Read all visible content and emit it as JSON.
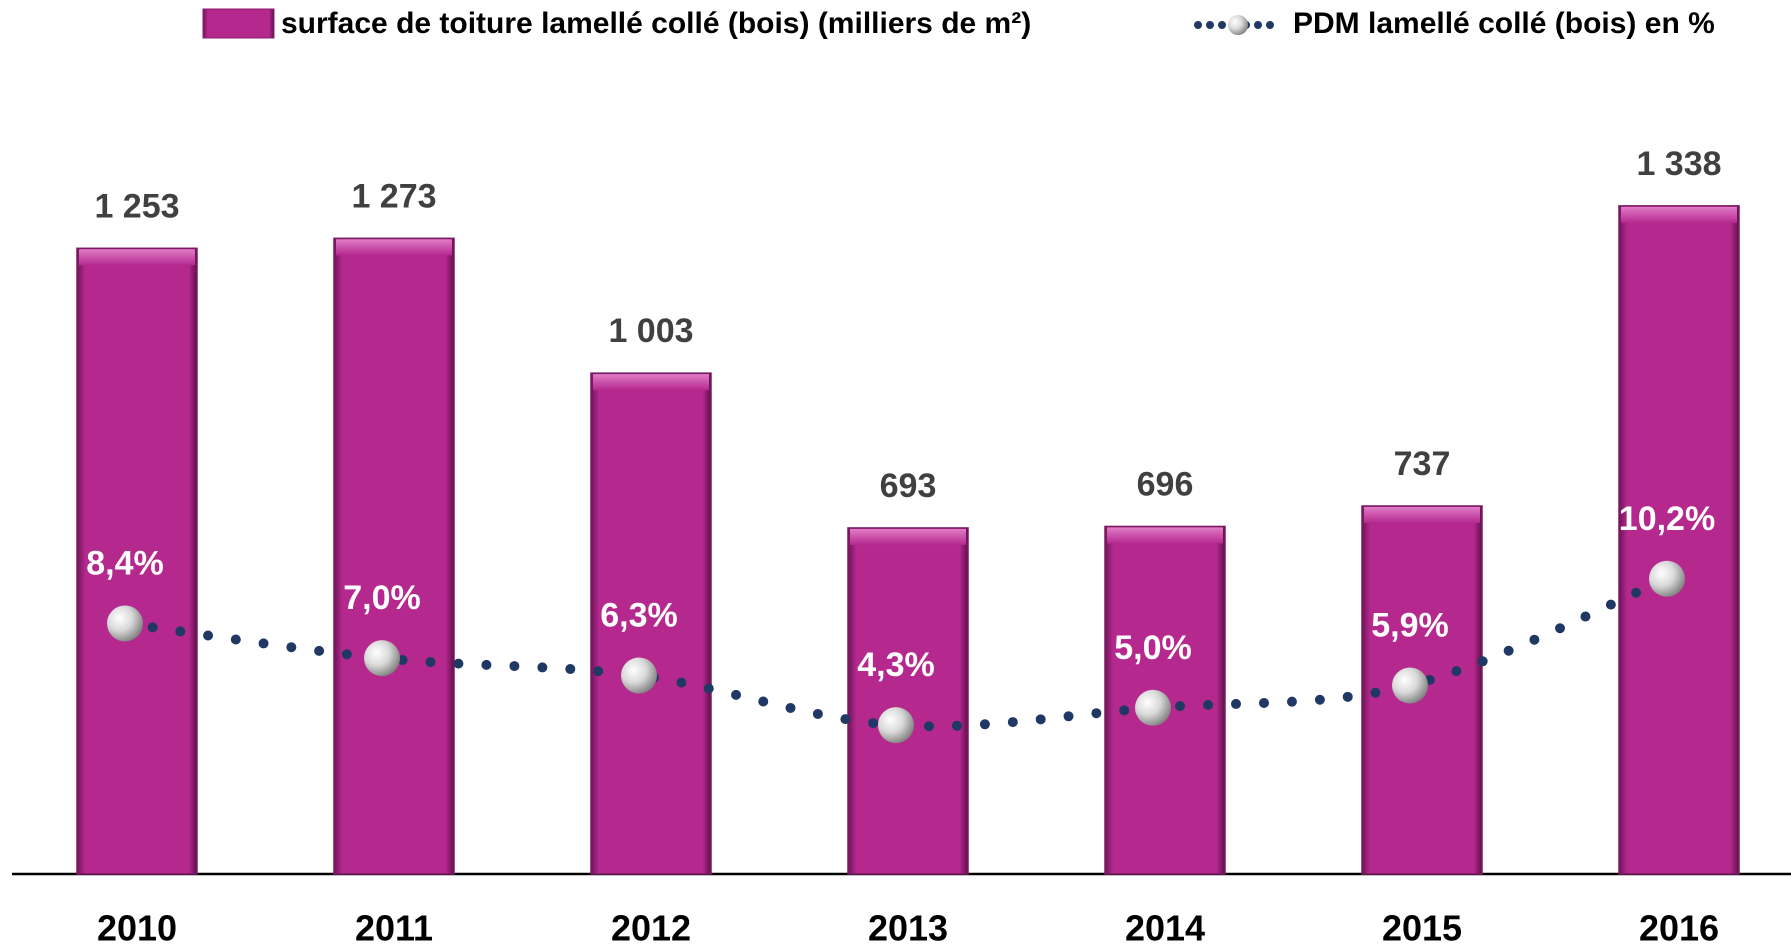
{
  "chart_data": {
    "type": "bar",
    "categories": [
      "2010",
      "2011",
      "2012",
      "2013",
      "2014",
      "2015",
      "2016"
    ],
    "series": [
      {
        "name": "surface de toiture lamellé collé (bois) (milliers de m²)",
        "type": "bar",
        "color": "#b5298f",
        "values": [
          1253,
          1273,
          1003,
          693,
          696,
          737,
          1338
        ],
        "value_labels": [
          "1 253",
          "1 273",
          "1 003",
          "693",
          "696",
          "737",
          "1 338"
        ]
      },
      {
        "name": "PDM lamellé collé (bois) en %",
        "type": "line",
        "axis": "y2",
        "color": "#1f3864",
        "values": [
          8.4,
          7.0,
          6.3,
          4.3,
          5.0,
          5.9,
          10.2
        ],
        "value_labels": [
          "8,4%",
          "7,0%",
          "6,3%",
          "4,3%",
          "5,0%",
          "5,9%",
          "10,2%"
        ]
      }
    ],
    "ylim": [
      0,
      1550
    ],
    "y2lim": [
      -1.7,
      29.5
    ],
    "grid": false
  }
}
